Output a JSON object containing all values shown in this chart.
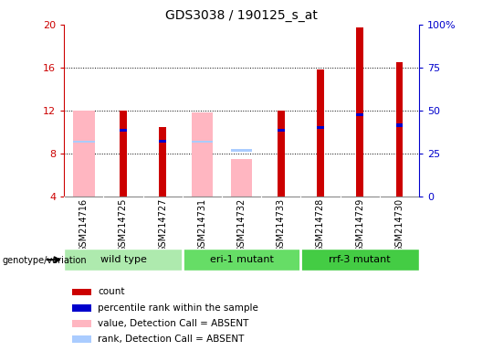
{
  "title": "GDS3038 / 190125_s_at",
  "samples": [
    "GSM214716",
    "GSM214725",
    "GSM214727",
    "GSM214731",
    "GSM214732",
    "GSM214733",
    "GSM214728",
    "GSM214729",
    "GSM214730"
  ],
  "count_values": [
    null,
    12.0,
    10.5,
    null,
    null,
    12.0,
    15.8,
    19.7,
    16.5
  ],
  "count_absent": [
    12.0,
    null,
    null,
    11.8,
    7.5,
    null,
    null,
    null,
    null
  ],
  "rank_present": [
    null,
    10.0,
    9.0,
    null,
    null,
    10.0,
    10.3,
    11.5,
    10.5
  ],
  "rank_absent": [
    9.0,
    null,
    null,
    9.0,
    8.2,
    null,
    null,
    null,
    null
  ],
  "ylim_left": [
    4,
    20
  ],
  "yticks_left": [
    4,
    8,
    12,
    16,
    20
  ],
  "ylim_right": [
    0,
    100
  ],
  "yticks_right": [
    0,
    25,
    50,
    75,
    100
  ],
  "color_count": "#CC0000",
  "color_count_absent": "#FFB6C1",
  "color_rank_blue": "#0000CC",
  "color_rank_absent": "#AACCFF",
  "left_tick_color": "#CC0000",
  "right_tick_color": "#0000CC",
  "group_bg_color": "#C8C8C8",
  "groups": [
    {
      "label": "wild type",
      "start": 0,
      "end": 2,
      "color": "#AEEAAE"
    },
    {
      "label": "eri-1 mutant",
      "start": 3,
      "end": 5,
      "color": "#66DD66"
    },
    {
      "label": "rrf-3 mutant",
      "start": 6,
      "end": 8,
      "color": "#44CC44"
    }
  ],
  "legend_items": [
    {
      "color": "#CC0000",
      "label": "count"
    },
    {
      "color": "#0000CC",
      "label": "percentile rank within the sample"
    },
    {
      "color": "#FFB6C1",
      "label": "value, Detection Call = ABSENT"
    },
    {
      "color": "#AACCFF",
      "label": "rank, Detection Call = ABSENT"
    }
  ]
}
